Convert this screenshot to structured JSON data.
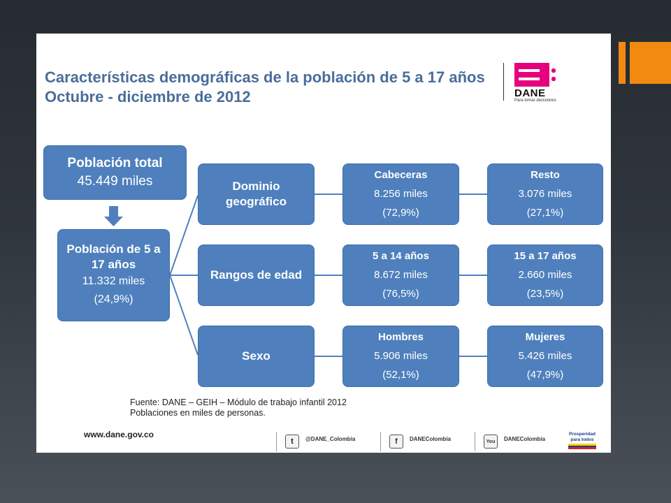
{
  "title": {
    "line1": "Características demográficas de la población de 5 a 17 años",
    "line2": "Octubre - diciembre de 2012"
  },
  "logo": {
    "word": "DANE",
    "tagline": "Para tomar decisiones",
    "color": "#e6007e"
  },
  "total": {
    "label": "Población total",
    "value": "45.449 miles"
  },
  "target": {
    "label_line1": "Población de 5 a",
    "label_line2": "17 años",
    "value": "11.332 miles",
    "share": "(24,9%)"
  },
  "categories": [
    {
      "label_line1": "Dominio",
      "label_line2": "geográfico",
      "left": {
        "label": "Cabeceras",
        "value": "8.256 miles",
        "share": "(72,9%)"
      },
      "right": {
        "label": "Resto",
        "value": "3.076 miles",
        "share": "(27,1%)"
      }
    },
    {
      "label_line1": "Rangos de edad",
      "label_line2": "",
      "left": {
        "label": "5 a 14 años",
        "value": "8.672 miles",
        "share": "(76,5%)"
      },
      "right": {
        "label": "15 a 17 años",
        "value": "2.660 miles",
        "share": "(23,5%)"
      }
    },
    {
      "label_line1": "Sexo",
      "label_line2": "",
      "left": {
        "label": "Hombres",
        "value": "5.906 miles",
        "share": "(52,1%)"
      },
      "right": {
        "label": "Mujeres",
        "value": "5.426 miles",
        "share": "(47,9%)"
      }
    }
  ],
  "source": {
    "line1": "Fuente: DANE – GEIH – Módulo de trabajo infantil 2012",
    "line2": "Poblaciones en miles de personas."
  },
  "footer": {
    "url": "www.dane.gov.co",
    "twitter": "@DANE_Colombia",
    "facebook": "DANEColombia",
    "youtube": "DANEColombia",
    "prosperidad": "Prosperidad para todos"
  },
  "colors": {
    "box": "#4f80bd",
    "title": "#4a6d9b",
    "accent": "#f28a12"
  }
}
